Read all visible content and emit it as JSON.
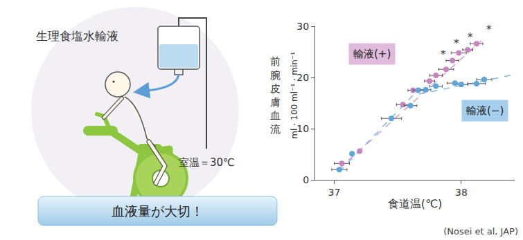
{
  "chart_data": {
    "type": "scatter",
    "xlabel": "食道温(℃)",
    "ylabel": "前腕皮膚血流",
    "yunit": "ml・100 ml⁻¹・min⁻¹",
    "xlim": [
      36.85,
      38.42
    ],
    "xticks": [
      37,
      38
    ],
    "ylim": [
      0,
      30
    ],
    "yticks": [
      0,
      10,
      20,
      30
    ],
    "grid": false,
    "marker": "circle",
    "line_style": "dashed",
    "series": [
      {
        "name": "輸液(+)",
        "color": "#c883c0",
        "x": [
          37.06,
          37.2,
          37.54,
          37.62,
          37.75,
          37.8,
          37.88,
          37.93,
          37.98,
          38.05,
          38.12
        ],
        "values": [
          3.2,
          5.6,
          14.7,
          17.5,
          19.3,
          20.4,
          21.6,
          23.3,
          24.8,
          25.4,
          26.6
        ],
        "x_error": [
          0.06,
          0,
          0.05,
          0.04,
          0.04,
          0.05,
          0.06,
          0.05,
          0.06,
          0.04,
          0.05
        ],
        "fit_x": [
          37.04,
          38.16
        ],
        "fit_values": [
          2.2,
          27.2
        ]
      },
      {
        "name": "輸液(−)",
        "color": "#5ba7dc",
        "x": [
          37.04,
          37.14,
          37.45,
          37.6,
          37.66,
          37.72,
          37.8,
          37.95,
          38.0,
          38.12,
          38.18
        ],
        "values": [
          2.0,
          5.1,
          12.0,
          14.5,
          17.5,
          17.6,
          18.3,
          18.9,
          18.6,
          18.8,
          19.6
        ],
        "x_error": [
          0.06,
          0,
          0.08,
          0.05,
          0.04,
          0.04,
          0.05,
          0.06,
          0.05,
          0.07,
          0.06
        ],
        "fit_x": [
          37.04,
          37.62,
          38.42
        ],
        "fit_values": [
          1.6,
          16.5,
          20.6
        ]
      }
    ],
    "annotations": [
      {
        "text": "*",
        "x": 37.86,
        "y": 24.5
      },
      {
        "text": "*",
        "x": 37.96,
        "y": 26.6
      },
      {
        "text": "*",
        "x": 38.07,
        "y": 27.8
      },
      {
        "text": "*",
        "x": 38.22,
        "y": 29.3
      }
    ]
  },
  "illustration": {
    "iv_label": "生理食塩水輸液",
    "room_temp": "室温＝30℃",
    "banner": "血液量が大切！",
    "source": "(Nosei et al, JAP)"
  }
}
